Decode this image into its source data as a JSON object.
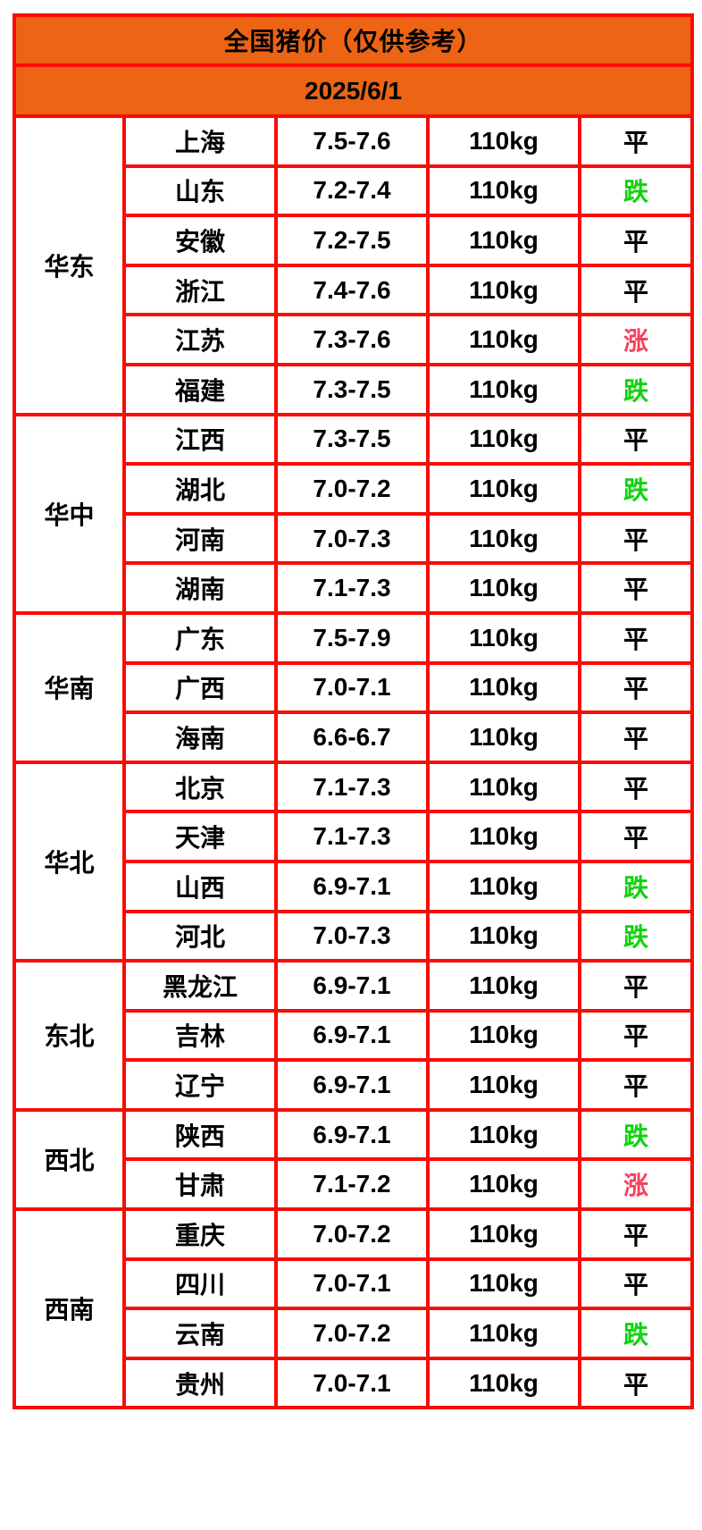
{
  "title": "全国猪价（仅供参考）",
  "date": "2025/6/1",
  "theme": {
    "header_bg": "#ec6414",
    "border_red": "#fa0b06",
    "text": "#000000"
  },
  "status_colors": {
    "平": "#000000",
    "跌": "#0fd30c",
    "涨": "#f4415c"
  },
  "regions": [
    {
      "name": "华东",
      "provinces": [
        {
          "province": "上海",
          "price": "7.5-7.6",
          "weight": "110kg",
          "status": "平"
        },
        {
          "province": "山东",
          "price": "7.2-7.4",
          "weight": "110kg",
          "status": "跌"
        },
        {
          "province": "安徽",
          "price": "7.2-7.5",
          "weight": "110kg",
          "status": "平"
        },
        {
          "province": "浙江",
          "price": "7.4-7.6",
          "weight": "110kg",
          "status": "平"
        },
        {
          "province": "江苏",
          "price": "7.3-7.6",
          "weight": "110kg",
          "status": "涨"
        },
        {
          "province": "福建",
          "price": "7.3-7.5",
          "weight": "110kg",
          "status": "跌"
        }
      ]
    },
    {
      "name": "华中",
      "provinces": [
        {
          "province": "江西",
          "price": "7.3-7.5",
          "weight": "110kg",
          "status": "平"
        },
        {
          "province": "湖北",
          "price": "7.0-7.2",
          "weight": "110kg",
          "status": "跌"
        },
        {
          "province": "河南",
          "price": "7.0-7.3",
          "weight": "110kg",
          "status": "平"
        },
        {
          "province": "湖南",
          "price": "7.1-7.3",
          "weight": "110kg",
          "status": "平"
        }
      ]
    },
    {
      "name": "华南",
      "provinces": [
        {
          "province": "广东",
          "price": "7.5-7.9",
          "weight": "110kg",
          "status": "平"
        },
        {
          "province": "广西",
          "price": "7.0-7.1",
          "weight": "110kg",
          "status": "平"
        },
        {
          "province": "海南",
          "price": "6.6-6.7",
          "weight": "110kg",
          "status": "平"
        }
      ]
    },
    {
      "name": "华北",
      "provinces": [
        {
          "province": "北京",
          "price": "7.1-7.3",
          "weight": "110kg",
          "status": "平"
        },
        {
          "province": "天津",
          "price": "7.1-7.3",
          "weight": "110kg",
          "status": "平"
        },
        {
          "province": "山西",
          "price": "6.9-7.1",
          "weight": "110kg",
          "status": "跌"
        },
        {
          "province": "河北",
          "price": "7.0-7.3",
          "weight": "110kg",
          "status": "跌"
        }
      ]
    },
    {
      "name": "东北",
      "provinces": [
        {
          "province": "黑龙江",
          "price": "6.9-7.1",
          "weight": "110kg",
          "status": "平"
        },
        {
          "province": "吉林",
          "price": "6.9-7.1",
          "weight": "110kg",
          "status": "平"
        },
        {
          "province": "辽宁",
          "price": "6.9-7.1",
          "weight": "110kg",
          "status": "平"
        }
      ]
    },
    {
      "name": "西北",
      "provinces": [
        {
          "province": "陕西",
          "price": "6.9-7.1",
          "weight": "110kg",
          "status": "跌"
        },
        {
          "province": "甘肃",
          "price": "7.1-7.2",
          "weight": "110kg",
          "status": "涨"
        }
      ]
    },
    {
      "name": "西南",
      "provinces": [
        {
          "province": "重庆",
          "price": "7.0-7.2",
          "weight": "110kg",
          "status": "平"
        },
        {
          "province": "四川",
          "price": "7.0-7.1",
          "weight": "110kg",
          "status": "平"
        },
        {
          "province": "云南",
          "price": "7.0-7.2",
          "weight": "110kg",
          "status": "跌"
        },
        {
          "province": "贵州",
          "price": "7.0-7.1",
          "weight": "110kg",
          "status": "平"
        }
      ]
    }
  ]
}
